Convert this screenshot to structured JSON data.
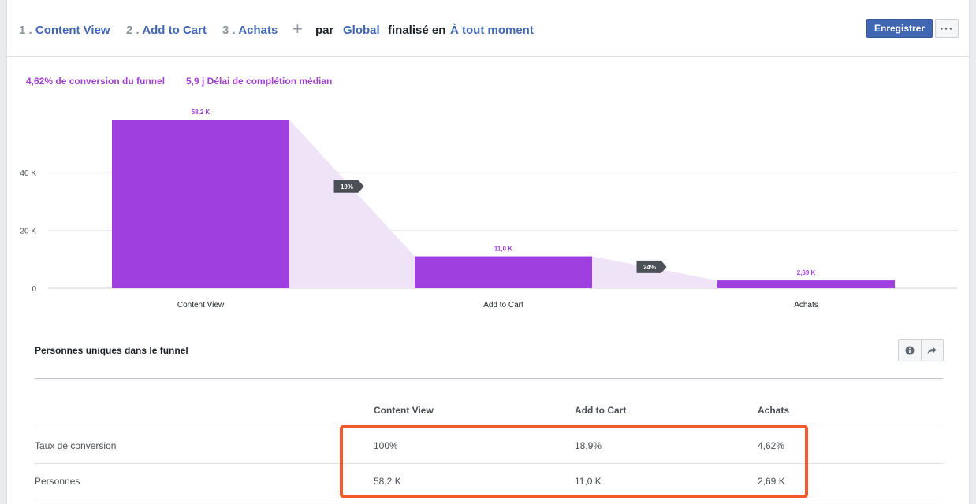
{
  "header": {
    "steps": [
      {
        "num": "1 .",
        "label": "Content View"
      },
      {
        "num": "2 .",
        "label": "Add to Cart"
      },
      {
        "num": "3 .",
        "label": "Achats"
      }
    ],
    "plus": "+",
    "par": "par",
    "global": "Global",
    "finalise": "finalisé en",
    "moment": "À tout moment",
    "save_label": "Enregistrer",
    "more_label": "···"
  },
  "summary": {
    "conversion": "4,62% de conversion du funnel",
    "delay": "5,9 j Délai de complétion médian"
  },
  "chart_data": {
    "type": "bar",
    "categories": [
      "Content View",
      "Add to Cart",
      "Achats"
    ],
    "values": [
      58200,
      11000,
      2690
    ],
    "value_labels": [
      "58,2 K",
      "11,0 K",
      "2,69 K"
    ],
    "step_rates": [
      "19%",
      "24%"
    ],
    "ylim": [
      0,
      58200
    ],
    "yticks": [
      0,
      20000,
      40000
    ],
    "ytick_labels": [
      "0",
      "20 K",
      "40 K"
    ],
    "grid": true,
    "bar_color": "#a03fe0",
    "funnel_color": "#efe3f8",
    "badge_color": "#4b4f56"
  },
  "table": {
    "title": "Personnes uniques dans le funnel",
    "columns": [
      "Content View",
      "Add to Cart",
      "Achats"
    ],
    "rows": [
      {
        "label": "Taux de conversion",
        "values": [
          "100%",
          "18,9%",
          "4,62%"
        ]
      },
      {
        "label": "Personnes",
        "values": [
          "58,2 K",
          "11,0 K",
          "2,69 K"
        ]
      }
    ]
  },
  "colors": {
    "accent": "#4267b2",
    "purple": "#a03fd2",
    "highlight": "#f1592a"
  }
}
